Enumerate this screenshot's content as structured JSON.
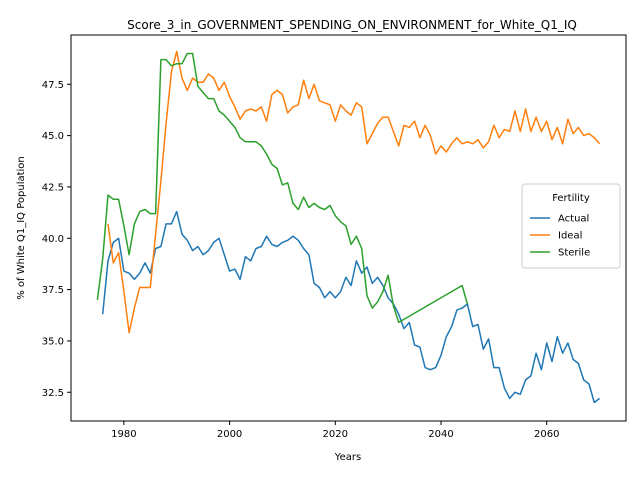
{
  "chart_data": {
    "type": "line",
    "title": "Score_3_in_GOVERNMENT_SPENDING_ON_ENVIRONMENT_for_White_Q1_IQ",
    "xlabel": "Years",
    "ylabel": "% of White Q1_IQ Population",
    "xlim": [
      1970,
      2075
    ],
    "ylim": [
      31.1,
      49.9
    ],
    "xticks": [
      1980,
      2000,
      2020,
      2040,
      2060
    ],
    "yticks": [
      32.5,
      35.0,
      37.5,
      40.0,
      42.5,
      45.0,
      47.5
    ],
    "xtick_labels": [
      "1980",
      "2000",
      "2020",
      "2040",
      "2060"
    ],
    "ytick_labels": [
      "32.5",
      "35.0",
      "37.5",
      "40.0",
      "42.5",
      "45.0",
      "47.5"
    ],
    "grid": false,
    "legend": {
      "title": "Fertility",
      "placement": "center-right"
    },
    "series": [
      {
        "name": "Actual",
        "color": "#1f77b4",
        "points": [
          [
            1976,
            36.3
          ],
          [
            1977,
            38.9
          ],
          [
            1978,
            39.8
          ],
          [
            1979,
            40.0
          ],
          [
            1980,
            38.4
          ],
          [
            1981,
            38.3
          ],
          [
            1982,
            38.0
          ],
          [
            1983,
            38.3
          ],
          [
            1984,
            38.8
          ],
          [
            1985,
            38.3
          ],
          [
            1986,
            39.5
          ],
          [
            1987,
            39.6
          ],
          [
            1988,
            40.7
          ],
          [
            1989,
            40.7
          ],
          [
            1990,
            41.3
          ],
          [
            1991,
            40.2
          ],
          [
            1992,
            39.9
          ],
          [
            1993,
            39.4
          ],
          [
            1994,
            39.6
          ],
          [
            1995,
            39.2
          ],
          [
            1996,
            39.4
          ],
          [
            1997,
            39.8
          ],
          [
            1998,
            40.0
          ],
          [
            1999,
            39.2
          ],
          [
            2000,
            38.4
          ],
          [
            2001,
            38.5
          ],
          [
            2002,
            38.0
          ],
          [
            2003,
            39.1
          ],
          [
            2004,
            38.9
          ],
          [
            2005,
            39.5
          ],
          [
            2006,
            39.6
          ],
          [
            2007,
            40.1
          ],
          [
            2008,
            39.7
          ],
          [
            2009,
            39.6
          ],
          [
            2010,
            39.8
          ],
          [
            2011,
            39.9
          ],
          [
            2012,
            40.1
          ],
          [
            2013,
            39.9
          ],
          [
            2014,
            39.5
          ],
          [
            2015,
            39.2
          ],
          [
            2016,
            37.8
          ],
          [
            2017,
            37.6
          ],
          [
            2018,
            37.1
          ],
          [
            2019,
            37.4
          ],
          [
            2020,
            37.1
          ],
          [
            2021,
            37.4
          ],
          [
            2022,
            38.1
          ],
          [
            2023,
            37.7
          ],
          [
            2024,
            38.9
          ],
          [
            2025,
            38.3
          ],
          [
            2026,
            38.6
          ],
          [
            2027,
            37.8
          ],
          [
            2028,
            38.1
          ],
          [
            2029,
            37.7
          ],
          [
            2030,
            37.1
          ],
          [
            2031,
            36.8
          ],
          [
            2032,
            36.3
          ],
          [
            2033,
            35.6
          ],
          [
            2034,
            35.9
          ],
          [
            2035,
            34.8
          ],
          [
            2036,
            34.7
          ],
          [
            2037,
            33.7
          ],
          [
            2038,
            33.6
          ],
          [
            2039,
            33.7
          ],
          [
            2040,
            34.3
          ],
          [
            2041,
            35.2
          ],
          [
            2042,
            35.7
          ],
          [
            2043,
            36.5
          ],
          [
            2044,
            36.6
          ],
          [
            2045,
            36.8
          ],
          [
            2046,
            35.7
          ],
          [
            2047,
            35.8
          ],
          [
            2048,
            34.6
          ],
          [
            2049,
            35.1
          ],
          [
            2050,
            33.7
          ],
          [
            2051,
            33.7
          ],
          [
            2052,
            32.7
          ],
          [
            2053,
            32.2
          ],
          [
            2054,
            32.5
          ],
          [
            2055,
            32.4
          ],
          [
            2056,
            33.1
          ],
          [
            2057,
            33.3
          ],
          [
            2058,
            34.4
          ],
          [
            2059,
            33.6
          ],
          [
            2060,
            34.9
          ],
          [
            2061,
            34.0
          ],
          [
            2062,
            35.2
          ],
          [
            2063,
            34.4
          ],
          [
            2064,
            34.9
          ],
          [
            2065,
            34.1
          ],
          [
            2066,
            33.9
          ],
          [
            2067,
            33.1
          ],
          [
            2068,
            32.9
          ],
          [
            2069,
            32.0
          ],
          [
            2070,
            32.2
          ]
        ]
      },
      {
        "name": "Ideal",
        "color": "#ff7f0e",
        "points": [
          [
            1977,
            40.7
          ],
          [
            1978,
            38.8
          ],
          [
            1979,
            39.3
          ],
          [
            1980,
            37.4
          ],
          [
            1981,
            35.4
          ],
          [
            1982,
            36.6
          ],
          [
            1983,
            37.6
          ],
          [
            1984,
            37.6
          ],
          [
            1985,
            37.6
          ],
          [
            1986,
            40.2
          ],
          [
            1987,
            42.8
          ],
          [
            1988,
            45.6
          ],
          [
            1989,
            48.1
          ],
          [
            1990,
            49.1
          ],
          [
            1991,
            47.8
          ],
          [
            1992,
            47.2
          ],
          [
            1993,
            47.8
          ],
          [
            1994,
            47.6
          ],
          [
            1995,
            47.6
          ],
          [
            1996,
            48.0
          ],
          [
            1997,
            47.8
          ],
          [
            1998,
            47.2
          ],
          [
            1999,
            47.6
          ],
          [
            2000,
            46.9
          ],
          [
            2001,
            46.4
          ],
          [
            2002,
            45.8
          ],
          [
            2003,
            46.2
          ],
          [
            2004,
            46.3
          ],
          [
            2005,
            46.2
          ],
          [
            2006,
            46.4
          ],
          [
            2007,
            45.7
          ],
          [
            2008,
            47.0
          ],
          [
            2009,
            47.2
          ],
          [
            2010,
            47.0
          ],
          [
            2011,
            46.1
          ],
          [
            2012,
            46.4
          ],
          [
            2013,
            46.5
          ],
          [
            2014,
            47.7
          ],
          [
            2015,
            46.8
          ],
          [
            2016,
            47.5
          ],
          [
            2017,
            46.7
          ],
          [
            2018,
            46.6
          ],
          [
            2019,
            46.5
          ],
          [
            2020,
            45.7
          ],
          [
            2021,
            46.5
          ],
          [
            2022,
            46.2
          ],
          [
            2023,
            46.0
          ],
          [
            2024,
            46.6
          ],
          [
            2025,
            46.4
          ],
          [
            2026,
            44.6
          ],
          [
            2027,
            45.1
          ],
          [
            2028,
            45.6
          ],
          [
            2029,
            45.9
          ],
          [
            2030,
            45.9
          ],
          [
            2031,
            45.2
          ],
          [
            2032,
            44.5
          ],
          [
            2033,
            45.5
          ],
          [
            2034,
            45.4
          ],
          [
            2035,
            45.7
          ],
          [
            2036,
            44.9
          ],
          [
            2037,
            45.5
          ],
          [
            2038,
            45.0
          ],
          [
            2039,
            44.1
          ],
          [
            2040,
            44.5
          ],
          [
            2041,
            44.2
          ],
          [
            2042,
            44.6
          ],
          [
            2043,
            44.9
          ],
          [
            2044,
            44.6
          ],
          [
            2045,
            44.7
          ],
          [
            2046,
            44.6
          ],
          [
            2047,
            44.8
          ],
          [
            2048,
            44.4
          ],
          [
            2049,
            44.7
          ],
          [
            2050,
            45.5
          ],
          [
            2051,
            44.9
          ],
          [
            2052,
            45.3
          ],
          [
            2053,
            45.2
          ],
          [
            2054,
            46.2
          ],
          [
            2055,
            45.2
          ],
          [
            2056,
            46.3
          ],
          [
            2057,
            45.2
          ],
          [
            2058,
            45.9
          ],
          [
            2059,
            45.2
          ],
          [
            2060,
            45.7
          ],
          [
            2061,
            44.8
          ],
          [
            2062,
            45.4
          ],
          [
            2063,
            44.6
          ],
          [
            2064,
            45.8
          ],
          [
            2065,
            45.1
          ],
          [
            2066,
            45.4
          ],
          [
            2067,
            45.0
          ],
          [
            2068,
            45.1
          ],
          [
            2069,
            44.9
          ],
          [
            2070,
            44.6
          ]
        ]
      },
      {
        "name": "Sterile",
        "color": "#2ca02c",
        "points": [
          [
            1975,
            37.0
          ],
          [
            1976,
            39.0
          ],
          [
            1977,
            42.1
          ],
          [
            1978,
            41.9
          ],
          [
            1979,
            41.9
          ],
          [
            1980,
            40.6
          ],
          [
            1981,
            39.2
          ],
          [
            1982,
            40.7
          ],
          [
            1983,
            41.3
          ],
          [
            1984,
            41.4
          ],
          [
            1985,
            41.2
          ],
          [
            1986,
            41.2
          ],
          [
            1987,
            48.7
          ],
          [
            1988,
            48.7
          ],
          [
            1989,
            48.4
          ],
          [
            1990,
            48.5
          ],
          [
            1991,
            48.5
          ],
          [
            1992,
            49.0
          ],
          [
            1993,
            49.0
          ],
          [
            1994,
            47.4
          ],
          [
            1995,
            47.1
          ],
          [
            1996,
            46.8
          ],
          [
            1997,
            46.8
          ],
          [
            1998,
            46.2
          ],
          [
            1999,
            46.0
          ],
          [
            2000,
            45.7
          ],
          [
            2001,
            45.4
          ],
          [
            2002,
            44.9
          ],
          [
            2003,
            44.7
          ],
          [
            2004,
            44.7
          ],
          [
            2005,
            44.7
          ],
          [
            2006,
            44.5
          ],
          [
            2007,
            44.1
          ],
          [
            2008,
            43.6
          ],
          [
            2009,
            43.4
          ],
          [
            2010,
            42.6
          ],
          [
            2011,
            42.7
          ],
          [
            2012,
            41.7
          ],
          [
            2013,
            41.4
          ],
          [
            2014,
            42.0
          ],
          [
            2015,
            41.5
          ],
          [
            2016,
            41.7
          ],
          [
            2017,
            41.5
          ],
          [
            2018,
            41.4
          ],
          [
            2019,
            41.6
          ],
          [
            2020,
            41.1
          ],
          [
            2021,
            40.8
          ],
          [
            2022,
            40.6
          ],
          [
            2023,
            39.7
          ],
          [
            2024,
            40.1
          ],
          [
            2025,
            39.5
          ],
          [
            2026,
            37.2
          ],
          [
            2027,
            36.6
          ],
          [
            2028,
            36.9
          ],
          [
            2029,
            37.4
          ],
          [
            2030,
            38.2
          ],
          [
            2031,
            36.7
          ],
          [
            2032,
            35.9
          ],
          [
            2044,
            37.7
          ],
          [
            2045,
            36.8
          ]
        ]
      }
    ]
  }
}
